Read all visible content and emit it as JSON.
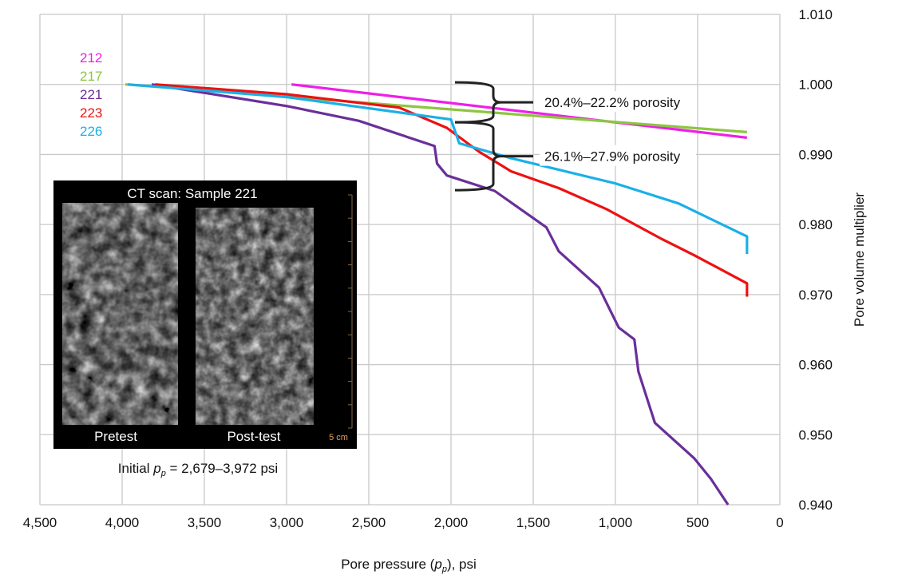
{
  "chart_data": {
    "type": "line",
    "title": "",
    "xlabel": "Pore pressure (p_p), psi",
    "xlabel_parts": {
      "prefix": "Pore pressure (",
      "var": "p",
      "sub": "p",
      "suffix": "), psi"
    },
    "ylabel": "Pore volume multiplier",
    "xlim": [
      4500,
      0
    ],
    "ylim": [
      0.94,
      1.01
    ],
    "x_reversed": true,
    "grid": true,
    "x_ticks": [
      "4,500",
      "4,000",
      "3,500",
      "3,000",
      "2,500",
      "2,000",
      "1,500",
      "1,000",
      "500",
      "0"
    ],
    "x_tick_values": [
      4500,
      4000,
      3500,
      3000,
      2500,
      2000,
      1500,
      1000,
      500,
      0
    ],
    "y_ticks": [
      "1.010",
      "1.000",
      "0.990",
      "0.980",
      "0.970",
      "0.960",
      "0.950",
      "0.940"
    ],
    "y_tick_values": [
      1.01,
      1.0,
      0.99,
      0.98,
      0.97,
      0.96,
      0.95,
      0.94
    ],
    "legend_placement": "top-left",
    "series": [
      {
        "name": "212",
        "color": "#ee1ee8",
        "x": [
          2970,
          200
        ],
        "y": [
          1.0,
          0.9924
        ]
      },
      {
        "name": "217",
        "color": "#8cc63f",
        "x": [
          3980,
          200
        ],
        "y": [
          1.0,
          0.9932
        ]
      },
      {
        "name": "221",
        "color": "#6a2f9a",
        "x": [
          3820,
          2995,
          2560,
          2100,
          2085,
          2025,
          1735,
          1420,
          1345,
          1100,
          980,
          885,
          860,
          760,
          520,
          420,
          315
        ],
        "y": [
          1.0,
          0.9969,
          0.9948,
          0.9912,
          0.9887,
          0.987,
          0.9848,
          0.9796,
          0.9762,
          0.971,
          0.9653,
          0.9636,
          0.959,
          0.9517,
          0.9466,
          0.9437,
          0.94
        ]
      },
      {
        "name": "223",
        "color": "#ee1111",
        "x": [
          3800,
          3000,
          2315,
          2025,
          1830,
          1635,
          1345,
          1055,
          715,
          520,
          200,
          200
        ],
        "y": [
          1.0,
          0.9986,
          0.9967,
          0.9938,
          0.9904,
          0.9876,
          0.9852,
          0.9822,
          0.9779,
          0.9756,
          0.9716,
          0.9697
        ]
      },
      {
        "name": "226",
        "color": "#1ab0e8",
        "x": [
          3965,
          3000,
          2000,
          1950,
          1640,
          1005,
          615,
          200,
          200
        ],
        "y": [
          1.0,
          0.9982,
          0.995,
          0.9916,
          0.9895,
          0.9859,
          0.983,
          0.9783,
          0.9758
        ]
      }
    ],
    "annotations": [
      {
        "text": "20.4%–22.2% porosity",
        "y_range": [
          0.9946,
          1.0003
        ]
      },
      {
        "text": "26.1%–27.9% porosity",
        "y_range": [
          0.9849,
          0.9946
        ]
      }
    ],
    "inset": {
      "title": "CT scan: Sample 221",
      "left_label": "Pretest",
      "right_label": "Post-test",
      "scale_label": "5 cm",
      "caption_prefix": "Initial ",
      "caption_var": "p",
      "caption_sub": "p",
      "caption_suffix": " = 2,679–3,972 psi"
    }
  }
}
